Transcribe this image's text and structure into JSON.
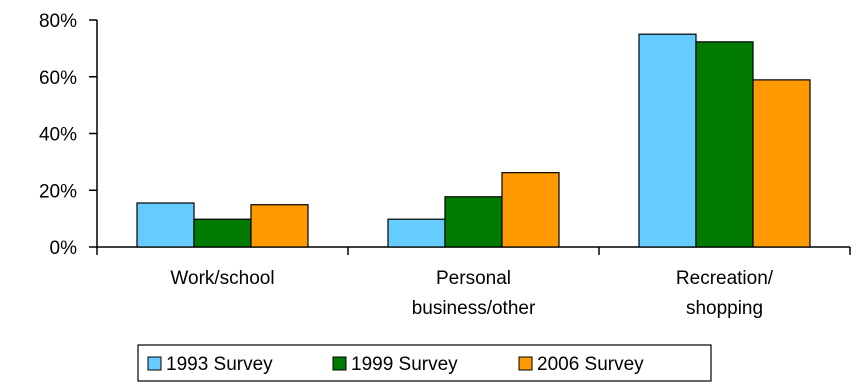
{
  "chart_data": {
    "type": "bar",
    "title": "",
    "xlabel": "",
    "ylabel": "",
    "categories": [
      [
        "Work/school"
      ],
      [
        "Personal",
        "business/other"
      ],
      [
        "Recreation/",
        "shopping"
      ]
    ],
    "series": [
      {
        "name": "1993 Survey",
        "color": "#66ccff",
        "values": [
          15.5,
          9.8,
          75
        ]
      },
      {
        "name": "1999 Survey",
        "color": "#007a00",
        "values": [
          9.8,
          17.7,
          72.3
        ]
      },
      {
        "name": "2006 Survey",
        "color": "#ff9900",
        "values": [
          14.9,
          26.2,
          58.9
        ]
      }
    ],
    "ylim": [
      0,
      80
    ],
    "yticks": [
      0,
      20,
      40,
      60,
      80
    ],
    "ytick_labels": [
      "0%",
      "20%",
      "40%",
      "60%",
      "80%"
    ],
    "grid": false,
    "legend": "bottom"
  }
}
